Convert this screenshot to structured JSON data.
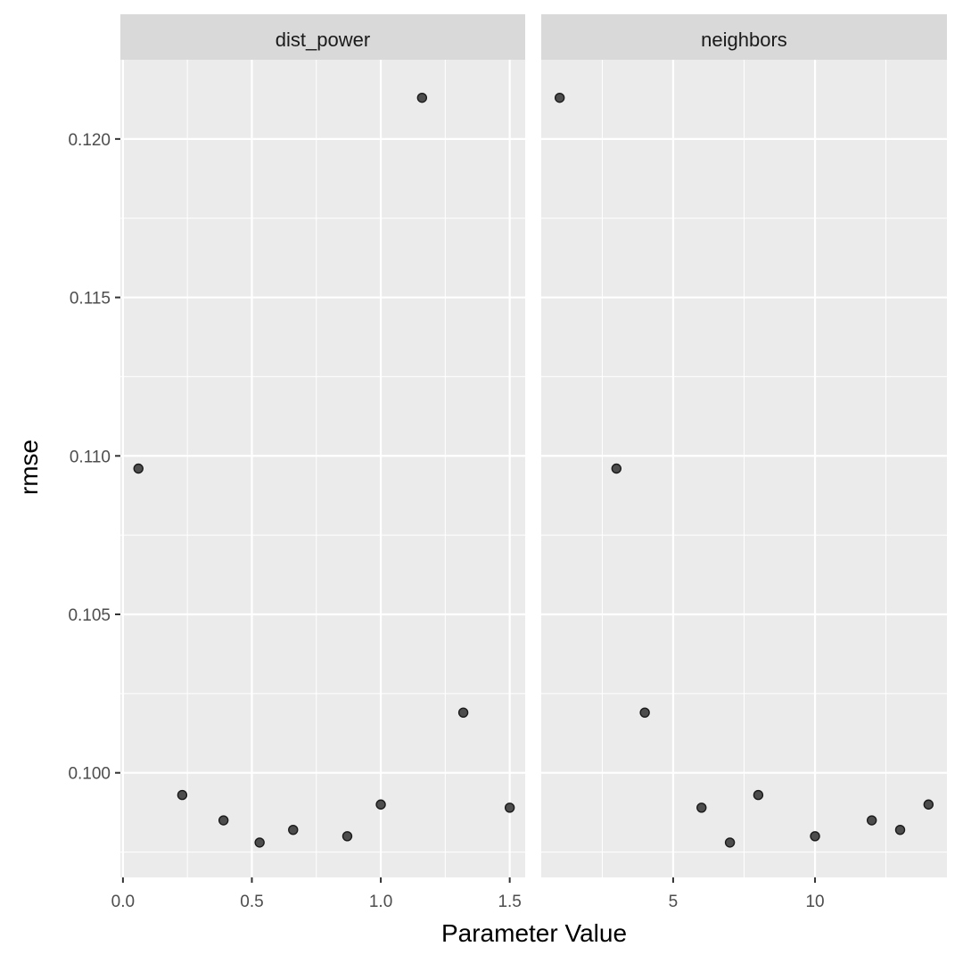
{
  "chart_data": {
    "type": "scatter",
    "xlabel": "Parameter Value",
    "ylabel": "rmse",
    "ylim": [
      0.0967,
      0.1225
    ],
    "y_ticks": [
      0.1,
      0.105,
      0.11,
      0.115,
      0.12
    ],
    "y_tick_labels": [
      "0.100",
      "0.105",
      "0.110",
      "0.115",
      "0.120"
    ],
    "grid": true,
    "facets": [
      {
        "name": "dist_power",
        "xlim": [
          -0.01,
          1.56
        ],
        "x_ticks": [
          0.0,
          0.5,
          1.0,
          1.5
        ],
        "x_tick_labels": [
          "0.0",
          "0.5",
          "1.0",
          "1.5"
        ],
        "points": [
          {
            "x": 0.06,
            "y": 0.1096
          },
          {
            "x": 0.23,
            "y": 0.0993
          },
          {
            "x": 0.39,
            "y": 0.0985
          },
          {
            "x": 0.53,
            "y": 0.0978
          },
          {
            "x": 0.66,
            "y": 0.0982
          },
          {
            "x": 0.87,
            "y": 0.098
          },
          {
            "x": 1.0,
            "y": 0.099
          },
          {
            "x": 1.16,
            "y": 0.1213
          },
          {
            "x": 1.32,
            "y": 0.1019
          },
          {
            "x": 1.5,
            "y": 0.0989
          }
        ]
      },
      {
        "name": "neighbors",
        "xlim": [
          0.35,
          14.65
        ],
        "x_ticks": [
          5,
          10
        ],
        "x_tick_labels": [
          "5",
          "10"
        ],
        "points": [
          {
            "x": 1,
            "y": 0.1213
          },
          {
            "x": 3,
            "y": 0.1096
          },
          {
            "x": 4,
            "y": 0.1019
          },
          {
            "x": 6,
            "y": 0.0989
          },
          {
            "x": 7,
            "y": 0.0978
          },
          {
            "x": 8,
            "y": 0.0993
          },
          {
            "x": 10,
            "y": 0.098
          },
          {
            "x": 12,
            "y": 0.0985
          },
          {
            "x": 13,
            "y": 0.0982
          },
          {
            "x": 14,
            "y": 0.099
          }
        ]
      }
    ],
    "colors": {
      "panel_bg": "#ebebeb",
      "strip_bg": "#d9d9d9",
      "grid": "#ffffff",
      "point_fill": "#4d4d4d",
      "point_stroke": "#1a1a1a"
    }
  }
}
